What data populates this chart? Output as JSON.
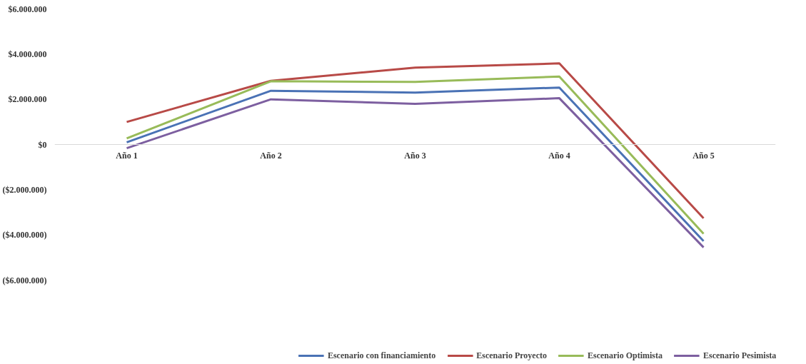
{
  "chart_data": {
    "type": "line",
    "categories": [
      "Año 1",
      "Año 2",
      "Año 3",
      "Año 4",
      "Año 5"
    ],
    "series": [
      {
        "name": "Escenario con financiamiento",
        "color": "#4a72b5",
        "values": [
          100000,
          2380000,
          2300000,
          2520000,
          -4270000
        ]
      },
      {
        "name": "Escenario Proyecto",
        "color": "#b84a47",
        "values": [
          1000000,
          2820000,
          3400000,
          3590000,
          -3260000
        ]
      },
      {
        "name": "Escenario Optimista",
        "color": "#98bb59",
        "values": [
          270000,
          2800000,
          2770000,
          3010000,
          -3950000
        ]
      },
      {
        "name": "Escenario Pesimista",
        "color": "#7d5fa0",
        "values": [
          -160000,
          2000000,
          1800000,
          2050000,
          -4550000
        ]
      }
    ],
    "ylim": [
      -6000000,
      6000000
    ],
    "yticks": [
      {
        "value": 6000000,
        "label": "$6.000.000"
      },
      {
        "value": 4000000,
        "label": "$4.000.000"
      },
      {
        "value": 2000000,
        "label": "$2.000.000"
      },
      {
        "value": 0,
        "label": "$0"
      },
      {
        "value": -2000000,
        "label": "($2.000.000)"
      },
      {
        "value": -4000000,
        "label": "($4.000.000)"
      },
      {
        "value": -6000000,
        "label": "($6.000.000)"
      }
    ],
    "grid": false,
    "legend": "bottom",
    "marker": "none",
    "line_style": "solid"
  }
}
